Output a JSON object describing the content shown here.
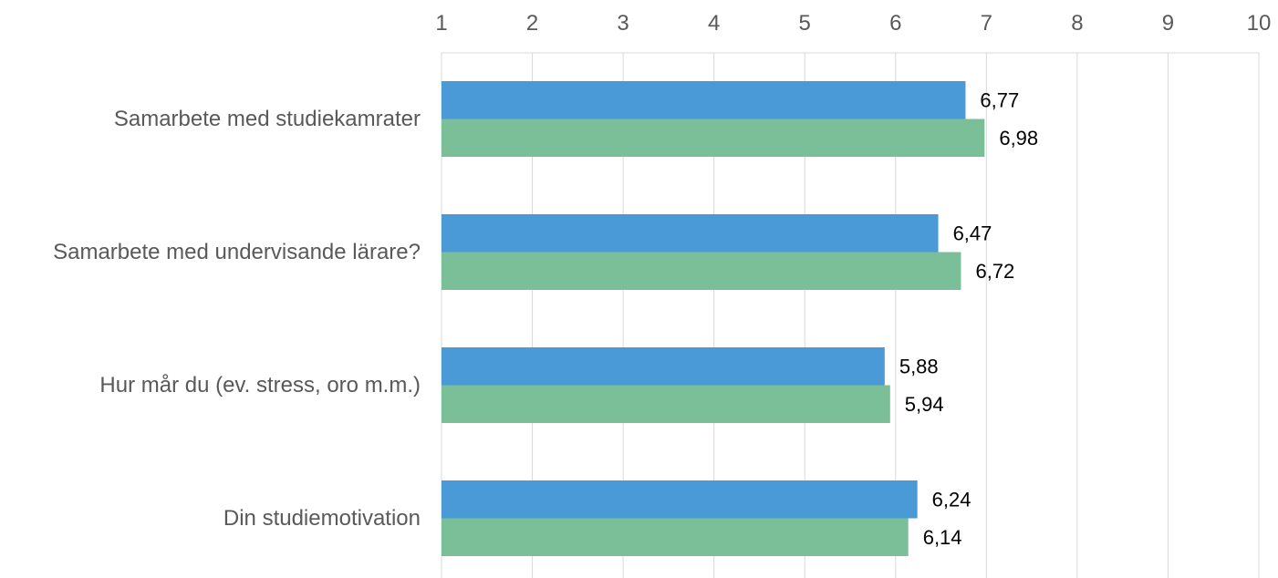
{
  "chart_data": {
    "type": "bar",
    "orientation": "horizontal",
    "categories": [
      "Samarbete med studiekamrater",
      "Samarbete med undervisande lärare?",
      "Hur mår du (ev. stress, oro m.m.)",
      "Din studiemotivation"
    ],
    "series": [
      {
        "values": [
          6.77,
          6.47,
          5.88,
          6.24
        ],
        "labels": [
          "6,77",
          "6,47",
          "5,88",
          "6,24"
        ],
        "color": "#4a9ad8"
      },
      {
        "values": [
          6.98,
          6.72,
          5.94,
          6.14
        ],
        "labels": [
          "6,98",
          "6,72",
          "5,94",
          "6,14"
        ],
        "color": "#7bbf98"
      }
    ],
    "x_ticks": [
      "1",
      "2",
      "3",
      "4",
      "5",
      "6",
      "7",
      "8",
      "9",
      "10"
    ],
    "xlim": [
      1,
      10
    ],
    "x_axis_position": "top",
    "grid": true,
    "legend": "none",
    "title": "",
    "xlabel": "",
    "ylabel": ""
  }
}
